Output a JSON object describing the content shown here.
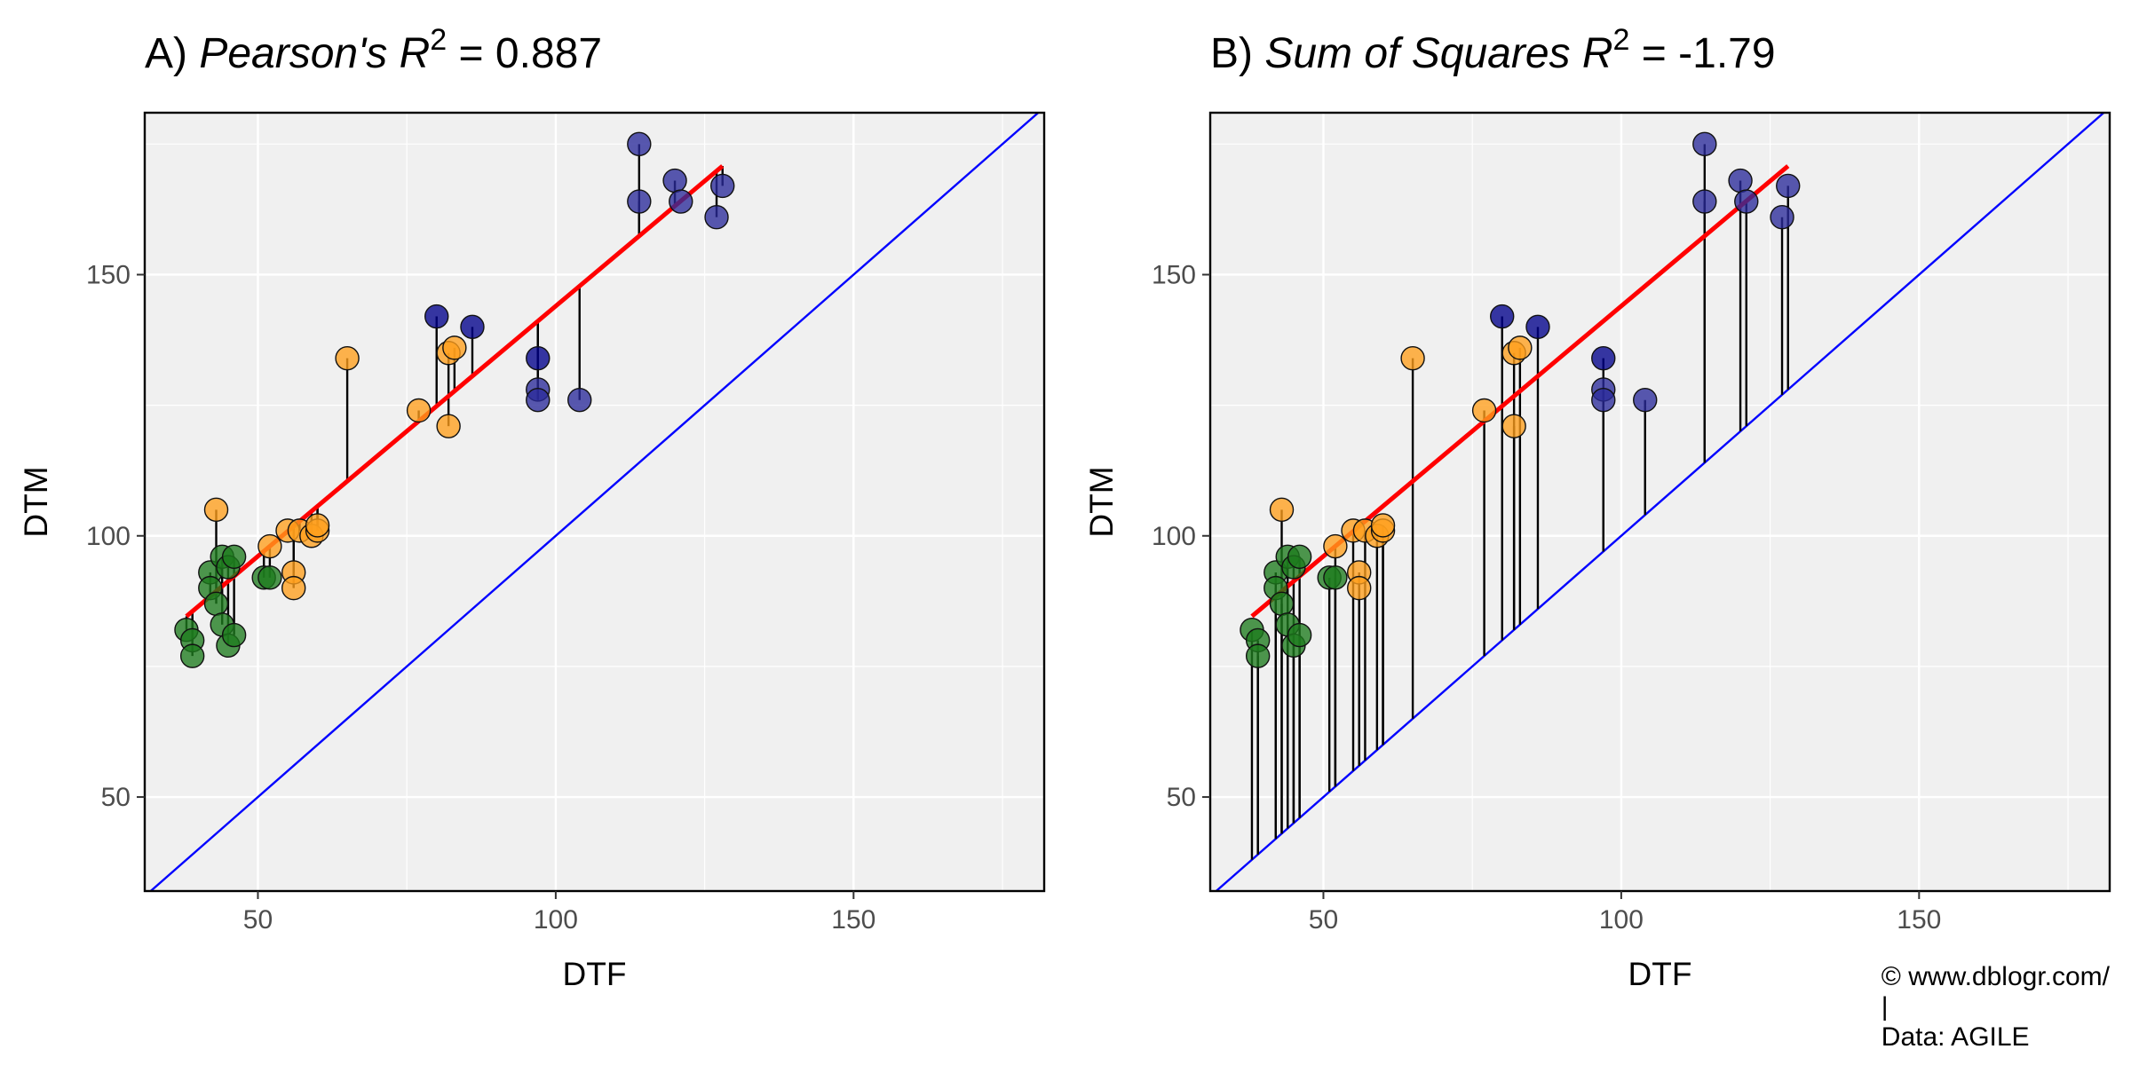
{
  "chart_data": [
    {
      "type": "scatter",
      "title_prefix": "A)",
      "title_italic": "Pearson's R",
      "title_sup": "2",
      "title_suffix": "= 0.887",
      "xlabel": "DTF",
      "ylabel": "DTM",
      "xlim": [
        31,
        182
      ],
      "ylim": [
        32,
        181
      ],
      "xticks": [
        50,
        100,
        150
      ],
      "yticks": [
        50,
        100,
        150
      ],
      "grid": true,
      "residual_target": "fit_line",
      "fit_line": {
        "x": [
          38,
          128
        ],
        "y": [
          84.6,
          170.8
        ],
        "color": "#ff0000"
      },
      "identity_line": {
        "slope": 1,
        "intercept": 0,
        "color": "#0000ff"
      },
      "points": [
        {
          "x": 38,
          "y": 82,
          "color": "#1e7b1e"
        },
        {
          "x": 39,
          "y": 80,
          "color": "#1e7b1e"
        },
        {
          "x": 39,
          "y": 77,
          "color": "#1e7b1e"
        },
        {
          "x": 42,
          "y": 93,
          "color": "#1e7b1e"
        },
        {
          "x": 42,
          "y": 90,
          "color": "#1e7b1e"
        },
        {
          "x": 43,
          "y": 87,
          "color": "#1e7b1e"
        },
        {
          "x": 44,
          "y": 96,
          "color": "#1e7b1e"
        },
        {
          "x": 44,
          "y": 83,
          "color": "#1e7b1e"
        },
        {
          "x": 45,
          "y": 94,
          "color": "#1e7b1e"
        },
        {
          "x": 45,
          "y": 79,
          "color": "#1e7b1e"
        },
        {
          "x": 46,
          "y": 96,
          "color": "#1e7b1e"
        },
        {
          "x": 46,
          "y": 81,
          "color": "#1e7b1e"
        },
        {
          "x": 51,
          "y": 92,
          "color": "#1e7b1e"
        },
        {
          "x": 52,
          "y": 92,
          "color": "#1e7b1e"
        },
        {
          "x": 43,
          "y": 105,
          "color": "#ff9f1c"
        },
        {
          "x": 52,
          "y": 98,
          "color": "#ff9f1c"
        },
        {
          "x": 55,
          "y": 101,
          "color": "#ff9f1c"
        },
        {
          "x": 56,
          "y": 93,
          "color": "#ff9f1c"
        },
        {
          "x": 56,
          "y": 90,
          "color": "#ff9f1c"
        },
        {
          "x": 57,
          "y": 101,
          "color": "#ff9f1c"
        },
        {
          "x": 59,
          "y": 100,
          "color": "#ff9f1c"
        },
        {
          "x": 60,
          "y": 101,
          "color": "#ff9f1c"
        },
        {
          "x": 60,
          "y": 102,
          "color": "#ff9f1c"
        },
        {
          "x": 65,
          "y": 134,
          "color": "#ff9f1c"
        },
        {
          "x": 77,
          "y": 124,
          "color": "#ff9f1c"
        },
        {
          "x": 82,
          "y": 121,
          "color": "#ff9f1c"
        },
        {
          "x": 82,
          "y": 135,
          "color": "#ff9f1c"
        },
        {
          "x": 83,
          "y": 136,
          "color": "#ff9f1c"
        },
        {
          "x": 80,
          "y": 142,
          "color": "#00008b"
        },
        {
          "x": 86,
          "y": 140,
          "color": "#00008b"
        },
        {
          "x": 97,
          "y": 134,
          "color": "#00008b"
        },
        {
          "x": 97,
          "y": 128,
          "color": "#2a2a9a"
        },
        {
          "x": 97,
          "y": 126,
          "color": "#2a2a9a"
        },
        {
          "x": 104,
          "y": 126,
          "color": "#2a2a9a"
        },
        {
          "x": 114,
          "y": 175,
          "color": "#2a2a9a"
        },
        {
          "x": 114,
          "y": 164,
          "color": "#2a2a9a"
        },
        {
          "x": 120,
          "y": 168,
          "color": "#2a2a9a"
        },
        {
          "x": 121,
          "y": 164,
          "color": "#2a2a9a"
        },
        {
          "x": 127,
          "y": 161,
          "color": "#2a2a9a"
        },
        {
          "x": 128,
          "y": 167,
          "color": "#2a2a9a"
        }
      ]
    },
    {
      "type": "scatter",
      "title_prefix": "B)",
      "title_italic": "Sum of Squares R",
      "title_sup": "2",
      "title_suffix": "= -1.79",
      "xlabel": "DTF",
      "ylabel": "DTM",
      "xlim": [
        31,
        182
      ],
      "ylim": [
        32,
        181
      ],
      "xticks": [
        50,
        100,
        150
      ],
      "yticks": [
        50,
        100,
        150
      ],
      "grid": true,
      "residual_target": "identity_line",
      "fit_line": {
        "x": [
          38,
          128
        ],
        "y": [
          84.6,
          170.8
        ],
        "color": "#ff0000"
      },
      "identity_line": {
        "slope": 1,
        "intercept": 0,
        "color": "#0000ff"
      },
      "points": [
        {
          "x": 38,
          "y": 82,
          "color": "#1e7b1e"
        },
        {
          "x": 39,
          "y": 80,
          "color": "#1e7b1e"
        },
        {
          "x": 39,
          "y": 77,
          "color": "#1e7b1e"
        },
        {
          "x": 42,
          "y": 93,
          "color": "#1e7b1e"
        },
        {
          "x": 42,
          "y": 90,
          "color": "#1e7b1e"
        },
        {
          "x": 43,
          "y": 87,
          "color": "#1e7b1e"
        },
        {
          "x": 44,
          "y": 96,
          "color": "#1e7b1e"
        },
        {
          "x": 44,
          "y": 83,
          "color": "#1e7b1e"
        },
        {
          "x": 45,
          "y": 94,
          "color": "#1e7b1e"
        },
        {
          "x": 45,
          "y": 79,
          "color": "#1e7b1e"
        },
        {
          "x": 46,
          "y": 96,
          "color": "#1e7b1e"
        },
        {
          "x": 46,
          "y": 81,
          "color": "#1e7b1e"
        },
        {
          "x": 51,
          "y": 92,
          "color": "#1e7b1e"
        },
        {
          "x": 52,
          "y": 92,
          "color": "#1e7b1e"
        },
        {
          "x": 43,
          "y": 105,
          "color": "#ff9f1c"
        },
        {
          "x": 52,
          "y": 98,
          "color": "#ff9f1c"
        },
        {
          "x": 55,
          "y": 101,
          "color": "#ff9f1c"
        },
        {
          "x": 56,
          "y": 93,
          "color": "#ff9f1c"
        },
        {
          "x": 56,
          "y": 90,
          "color": "#ff9f1c"
        },
        {
          "x": 57,
          "y": 101,
          "color": "#ff9f1c"
        },
        {
          "x": 59,
          "y": 100,
          "color": "#ff9f1c"
        },
        {
          "x": 60,
          "y": 101,
          "color": "#ff9f1c"
        },
        {
          "x": 60,
          "y": 102,
          "color": "#ff9f1c"
        },
        {
          "x": 65,
          "y": 134,
          "color": "#ff9f1c"
        },
        {
          "x": 77,
          "y": 124,
          "color": "#ff9f1c"
        },
        {
          "x": 82,
          "y": 121,
          "color": "#ff9f1c"
        },
        {
          "x": 82,
          "y": 135,
          "color": "#ff9f1c"
        },
        {
          "x": 83,
          "y": 136,
          "color": "#ff9f1c"
        },
        {
          "x": 80,
          "y": 142,
          "color": "#00008b"
        },
        {
          "x": 86,
          "y": 140,
          "color": "#00008b"
        },
        {
          "x": 97,
          "y": 134,
          "color": "#00008b"
        },
        {
          "x": 97,
          "y": 128,
          "color": "#2a2a9a"
        },
        {
          "x": 97,
          "y": 126,
          "color": "#2a2a9a"
        },
        {
          "x": 104,
          "y": 126,
          "color": "#2a2a9a"
        },
        {
          "x": 114,
          "y": 175,
          "color": "#2a2a9a"
        },
        {
          "x": 114,
          "y": 164,
          "color": "#2a2a9a"
        },
        {
          "x": 120,
          "y": 168,
          "color": "#2a2a9a"
        },
        {
          "x": 121,
          "y": 164,
          "color": "#2a2a9a"
        },
        {
          "x": 127,
          "y": 161,
          "color": "#2a2a9a"
        },
        {
          "x": 128,
          "y": 167,
          "color": "#2a2a9a"
        }
      ]
    }
  ],
  "caption": {
    "copyright": "© www.dblogr.com/",
    "separator": "|",
    "source": "Data: AGILE"
  },
  "colors": {
    "panel_background": "#f0f0f0",
    "grid": "#ffffff",
    "border": "#000000",
    "residual": "#000000"
  }
}
